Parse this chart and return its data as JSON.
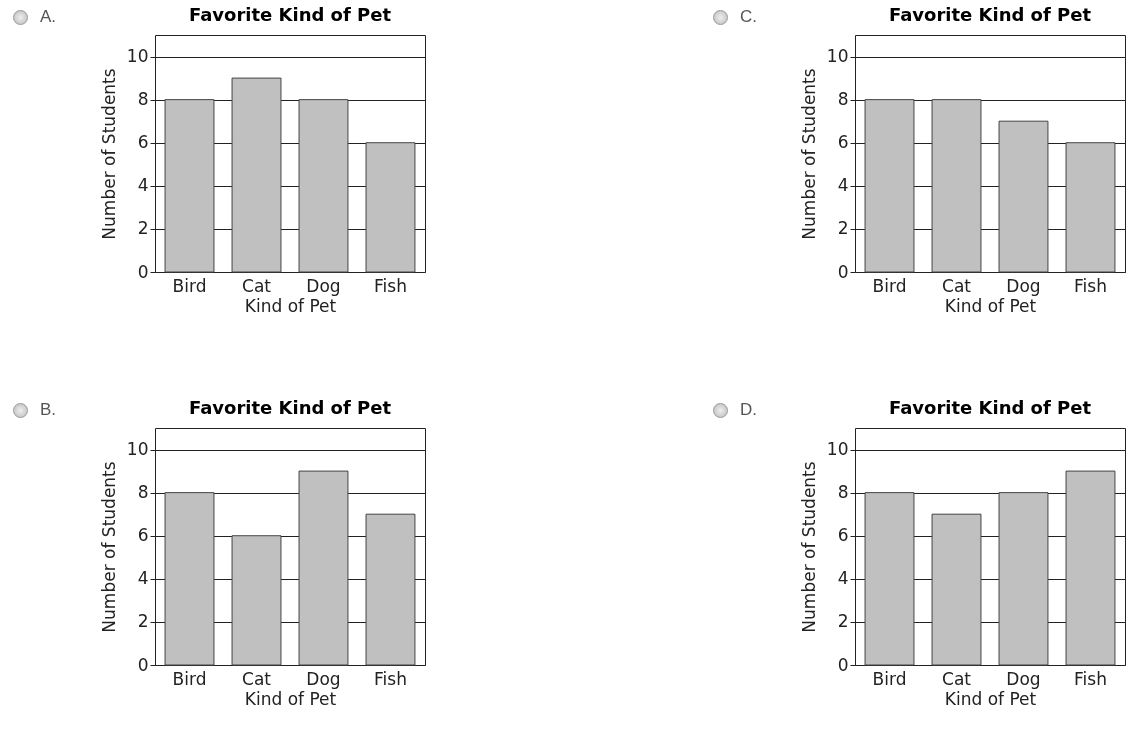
{
  "chart_data": [
    {
      "type": "bar",
      "title": "Favorite Kind of Pet",
      "xlabel": "Kind of Pet",
      "ylabel": "Number of Students",
      "categories": [
        "Bird",
        "Cat",
        "Dog",
        "Fish"
      ],
      "values": [
        8,
        9,
        8,
        6
      ],
      "color": "#c0c0c0",
      "ylim": [
        0,
        11
      ],
      "yticks": [
        0,
        2,
        4,
        6,
        8,
        10
      ],
      "grid": "y",
      "annotations": [
        "A."
      ]
    },
    {
      "type": "bar",
      "title": "Favorite Kind of Pet",
      "xlabel": "Kind of Pet",
      "ylabel": "Number of Students",
      "categories": [
        "Bird",
        "Cat",
        "Dog",
        "Fish"
      ],
      "values": [
        8,
        8,
        7,
        6
      ],
      "color": "#c0c0c0",
      "ylim": [
        0,
        11
      ],
      "yticks": [
        0,
        2,
        4,
        6,
        8,
        10
      ],
      "grid": "y",
      "annotations": [
        "C."
      ]
    },
    {
      "type": "bar",
      "title": "Favorite Kind of Pet",
      "xlabel": "Kind of Pet",
      "ylabel": "Number of Students",
      "categories": [
        "Bird",
        "Cat",
        "Dog",
        "Fish"
      ],
      "values": [
        8,
        6,
        9,
        7
      ],
      "color": "#c0c0c0",
      "ylim": [
        0,
        11
      ],
      "yticks": [
        0,
        2,
        4,
        6,
        8,
        10
      ],
      "grid": "y",
      "annotations": [
        "B."
      ]
    },
    {
      "type": "bar",
      "title": "Favorite Kind of Pet",
      "xlabel": "Kind of Pet",
      "ylabel": "Number of Students",
      "categories": [
        "Bird",
        "Cat",
        "Dog",
        "Fish"
      ],
      "values": [
        8,
        7,
        8,
        9
      ],
      "color": "#c0c0c0",
      "ylim": [
        0,
        11
      ],
      "yticks": [
        0,
        2,
        4,
        6,
        8,
        10
      ],
      "grid": "y",
      "annotations": [
        "D."
      ]
    }
  ]
}
